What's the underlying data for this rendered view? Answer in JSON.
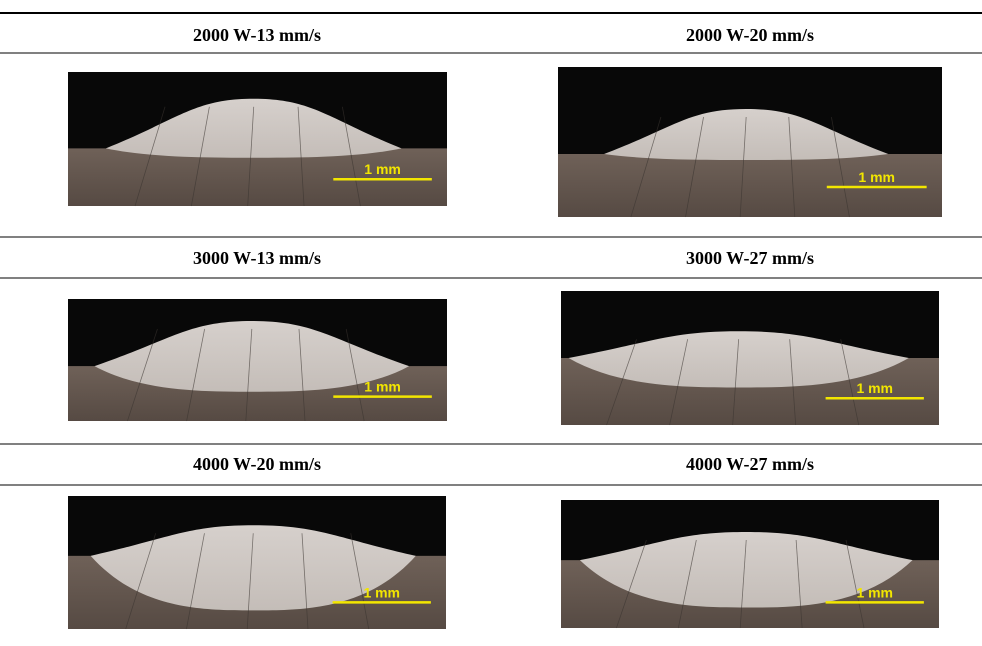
{
  "table": {
    "rows": [
      {
        "cells": [
          {
            "label": "2000 W-13 mm/s",
            "scale_bar": "1 mm"
          },
          {
            "label": "2000 W-20 mm/s",
            "scale_bar": "1 mm"
          }
        ]
      },
      {
        "cells": [
          {
            "label": "3000 W-13 mm/s",
            "scale_bar": "1 mm"
          },
          {
            "label": "3000 W-27 mm/s",
            "scale_bar": "1 mm"
          }
        ]
      },
      {
        "cells": [
          {
            "label": "4000 W-20 mm/s",
            "scale_bar": "1 mm"
          },
          {
            "label": "4000 W-27 mm/s",
            "scale_bar": "1 mm"
          }
        ]
      }
    ]
  }
}
